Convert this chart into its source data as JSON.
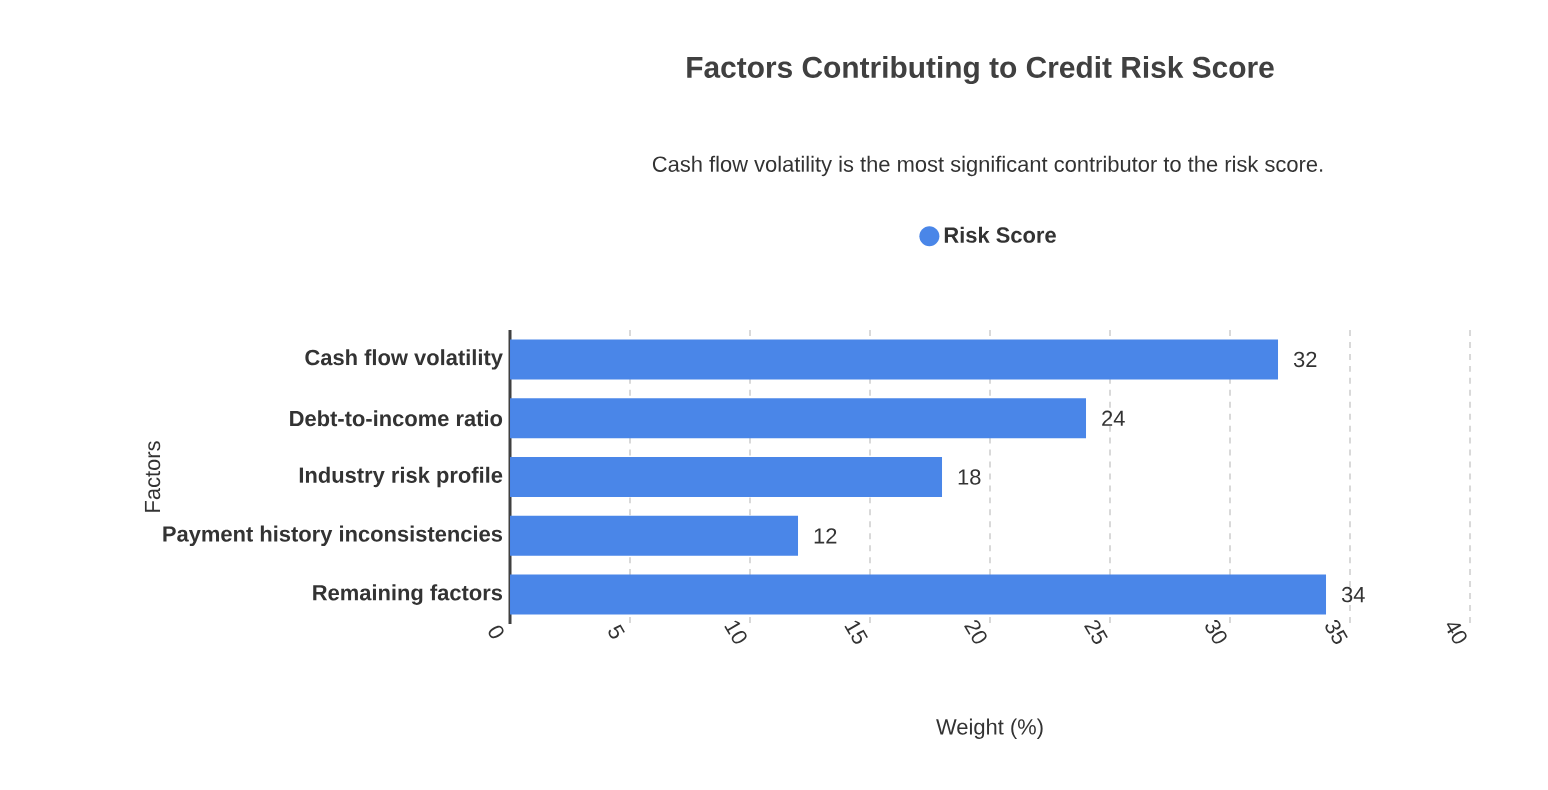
{
  "chart_data": {
    "type": "bar",
    "orientation": "horizontal",
    "title": "Factors Contributing to Credit Risk Score",
    "subtitle": "Cash flow volatility is the most significant contributor to the risk score.",
    "xlabel": "Weight (%)",
    "ylabel": "Factors",
    "categories": [
      "Cash flow volatility",
      "Debt-to-income ratio",
      "Industry risk profile",
      "Payment history inconsistencies",
      "Remaining factors"
    ],
    "series": [
      {
        "name": "Risk Score",
        "color": "#4a86e8",
        "values": [
          32,
          24,
          18,
          12,
          34
        ]
      }
    ],
    "xlim": [
      0,
      40
    ],
    "xticks": [
      0,
      5,
      10,
      15,
      20,
      25,
      30,
      35,
      40
    ],
    "grid": "x",
    "legend": "top",
    "data_labels": true
  }
}
